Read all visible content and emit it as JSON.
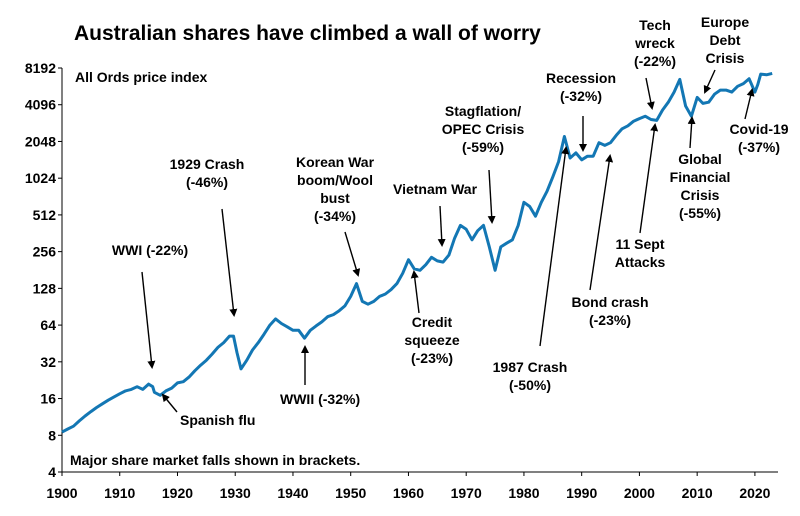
{
  "chart_data": {
    "type": "line",
    "title": "Australian shares have climbed a wall of worry",
    "subtitle": "All Ords price index",
    "footnote": "Major share market falls shown in brackets.",
    "yscale": "log2",
    "ylim": [
      4,
      8192
    ],
    "xlim": [
      1900,
      2024
    ],
    "yticks": [
      "8192",
      "4096",
      "2048",
      "1024",
      "512",
      "256",
      "128",
      "64",
      "32",
      "16",
      "8",
      "4"
    ],
    "xticks": [
      "1900",
      "1910",
      "1920",
      "1930",
      "1940",
      "1950",
      "1960",
      "1970",
      "1980",
      "1990",
      "2000",
      "2010",
      "2020"
    ],
    "series": [
      {
        "color": "#1377b4",
        "points": [
          [
            1900,
            8.5
          ],
          [
            1901,
            9
          ],
          [
            1902,
            9.5
          ],
          [
            1903,
            10.5
          ],
          [
            1904,
            11.5
          ],
          [
            1905,
            12.5
          ],
          [
            1906,
            13.5
          ],
          [
            1907,
            14.5
          ],
          [
            1908,
            15.5
          ],
          [
            1909,
            16.5
          ],
          [
            1910,
            17.5
          ],
          [
            1911,
            18.5
          ],
          [
            1912,
            19
          ],
          [
            1913,
            20
          ],
          [
            1914,
            19
          ],
          [
            1915,
            21
          ],
          [
            1915.7,
            20
          ],
          [
            1916,
            18
          ],
          [
            1917,
            17
          ],
          [
            1918,
            18.5
          ],
          [
            1919,
            19.5
          ],
          [
            1920,
            21.5
          ],
          [
            1921,
            22
          ],
          [
            1922,
            24
          ],
          [
            1923,
            27
          ],
          [
            1924,
            30
          ],
          [
            1925,
            33
          ],
          [
            1926,
            37
          ],
          [
            1927,
            42
          ],
          [
            1928,
            46
          ],
          [
            1929,
            52
          ],
          [
            1929.7,
            52
          ],
          [
            1930.3,
            38
          ],
          [
            1931,
            28
          ],
          [
            1932,
            33
          ],
          [
            1933,
            40
          ],
          [
            1934,
            46
          ],
          [
            1935,
            54
          ],
          [
            1936,
            64
          ],
          [
            1937,
            72
          ],
          [
            1938,
            66
          ],
          [
            1939,
            62
          ],
          [
            1940,
            58
          ],
          [
            1941,
            58
          ],
          [
            1942,
            50
          ],
          [
            1943,
            58
          ],
          [
            1944,
            63
          ],
          [
            1945,
            68
          ],
          [
            1946,
            75
          ],
          [
            1947,
            78
          ],
          [
            1948,
            84
          ],
          [
            1949,
            92
          ],
          [
            1950,
            110
          ],
          [
            1951,
            140
          ],
          [
            1952,
            100
          ],
          [
            1953,
            95
          ],
          [
            1954,
            100
          ],
          [
            1955,
            110
          ],
          [
            1956,
            115
          ],
          [
            1957,
            125
          ],
          [
            1958,
            140
          ],
          [
            1959,
            170
          ],
          [
            1960,
            220
          ],
          [
            1961,
            185
          ],
          [
            1962,
            180
          ],
          [
            1963,
            200
          ],
          [
            1964,
            230
          ],
          [
            1965,
            215
          ],
          [
            1966,
            210
          ],
          [
            1967,
            240
          ],
          [
            1968,
            330
          ],
          [
            1969,
            420
          ],
          [
            1970,
            390
          ],
          [
            1971,
            320
          ],
          [
            1972,
            380
          ],
          [
            1973,
            420
          ],
          [
            1974,
            280
          ],
          [
            1975,
            180
          ],
          [
            1976,
            280
          ],
          [
            1977,
            300
          ],
          [
            1978,
            320
          ],
          [
            1979,
            420
          ],
          [
            1980,
            650
          ],
          [
            1981,
            600
          ],
          [
            1982,
            500
          ],
          [
            1983,
            650
          ],
          [
            1984,
            800
          ],
          [
            1985,
            1050
          ],
          [
            1986,
            1400
          ],
          [
            1987,
            2250
          ],
          [
            1988,
            1500
          ],
          [
            1989,
            1650
          ],
          [
            1990,
            1450
          ],
          [
            1991,
            1550
          ],
          [
            1992,
            1550
          ],
          [
            1993,
            2000
          ],
          [
            1994,
            1900
          ],
          [
            1995,
            2000
          ],
          [
            1996,
            2300
          ],
          [
            1997,
            2600
          ],
          [
            1998,
            2750
          ],
          [
            1999,
            3000
          ],
          [
            2000,
            3150
          ],
          [
            2001,
            3300
          ],
          [
            2002,
            3100
          ],
          [
            2003,
            3050
          ],
          [
            2004,
            3700
          ],
          [
            2005,
            4300
          ],
          [
            2006,
            5200
          ],
          [
            2007,
            6600
          ],
          [
            2008,
            4000
          ],
          [
            2009,
            3300
          ],
          [
            2010,
            4700
          ],
          [
            2011,
            4200
          ],
          [
            2012,
            4300
          ],
          [
            2013,
            5000
          ],
          [
            2014,
            5400
          ],
          [
            2015,
            5400
          ],
          [
            2016,
            5200
          ],
          [
            2017,
            5800
          ],
          [
            2018,
            6100
          ],
          [
            2019,
            6700
          ],
          [
            2020,
            5200
          ],
          [
            2020.5,
            6000
          ],
          [
            2021,
            7300
          ],
          [
            2022,
            7200
          ],
          [
            2023,
            7400
          ]
        ]
      }
    ],
    "annotations": [
      {
        "id": "wwi",
        "lines": [
          "WWI (-22%)"
        ],
        "x": 1915.5,
        "y": 19.5
      },
      {
        "id": "spanish",
        "lines": [
          "Spanish flu"
        ],
        "x": 1918.5,
        "y": 18
      },
      {
        "id": "crash1929",
        "lines": [
          "1929 Crash",
          "(-46%)"
        ],
        "x": 1929.5,
        "y": 52
      },
      {
        "id": "wwii",
        "lines": [
          "WWII (-32%)"
        ],
        "x": 1942,
        "y": 52
      },
      {
        "id": "korean",
        "lines": [
          "Korean War",
          "boom/Wool",
          "bust",
          "(-34%)"
        ],
        "x": 1951,
        "y": 120
      },
      {
        "id": "vietnam",
        "lines": [
          "Vietnam War"
        ],
        "x": 1966,
        "y": 215
      },
      {
        "id": "credit",
        "lines": [
          "Credit",
          "squeeze",
          "(-23%)"
        ],
        "x": 1961.5,
        "y": 175
      },
      {
        "id": "stagflation",
        "lines": [
          "Stagflation/",
          "OPEC Crisis",
          "(-59%)"
        ],
        "x": 1974.5,
        "y": 330
      },
      {
        "id": "crash1987",
        "lines": [
          "1987 Crash",
          "(-50%)"
        ],
        "x": 1988,
        "y": 1800
      },
      {
        "id": "recession",
        "lines": [
          "Recession",
          "(-32%)"
        ],
        "x": 1990.5,
        "y": 1550
      },
      {
        "id": "bond",
        "lines": [
          "Bond crash",
          "(-23%)"
        ],
        "x": 1994.5,
        "y": 1800
      },
      {
        "id": "sept11",
        "lines": [
          "11 Sept",
          "Attacks"
        ],
        "x": 2002,
        "y": 3100
      },
      {
        "id": "techwreck",
        "lines": [
          "Tech",
          "wreck",
          "(-22%)"
        ],
        "x": 2002.5,
        "y": 3300
      },
      {
        "id": "gfc",
        "lines": [
          "Global",
          "Financial",
          "Crisis",
          "(-55%)"
        ],
        "x": 2009,
        "y": 3100
      },
      {
        "id": "europe",
        "lines": [
          "Europe",
          "Debt",
          "Crisis"
        ],
        "x": 2011.5,
        "y": 4300
      },
      {
        "id": "covid",
        "lines": [
          "Covid-19",
          "(-37%)"
        ],
        "x": 2020.3,
        "y": 5000
      }
    ]
  }
}
